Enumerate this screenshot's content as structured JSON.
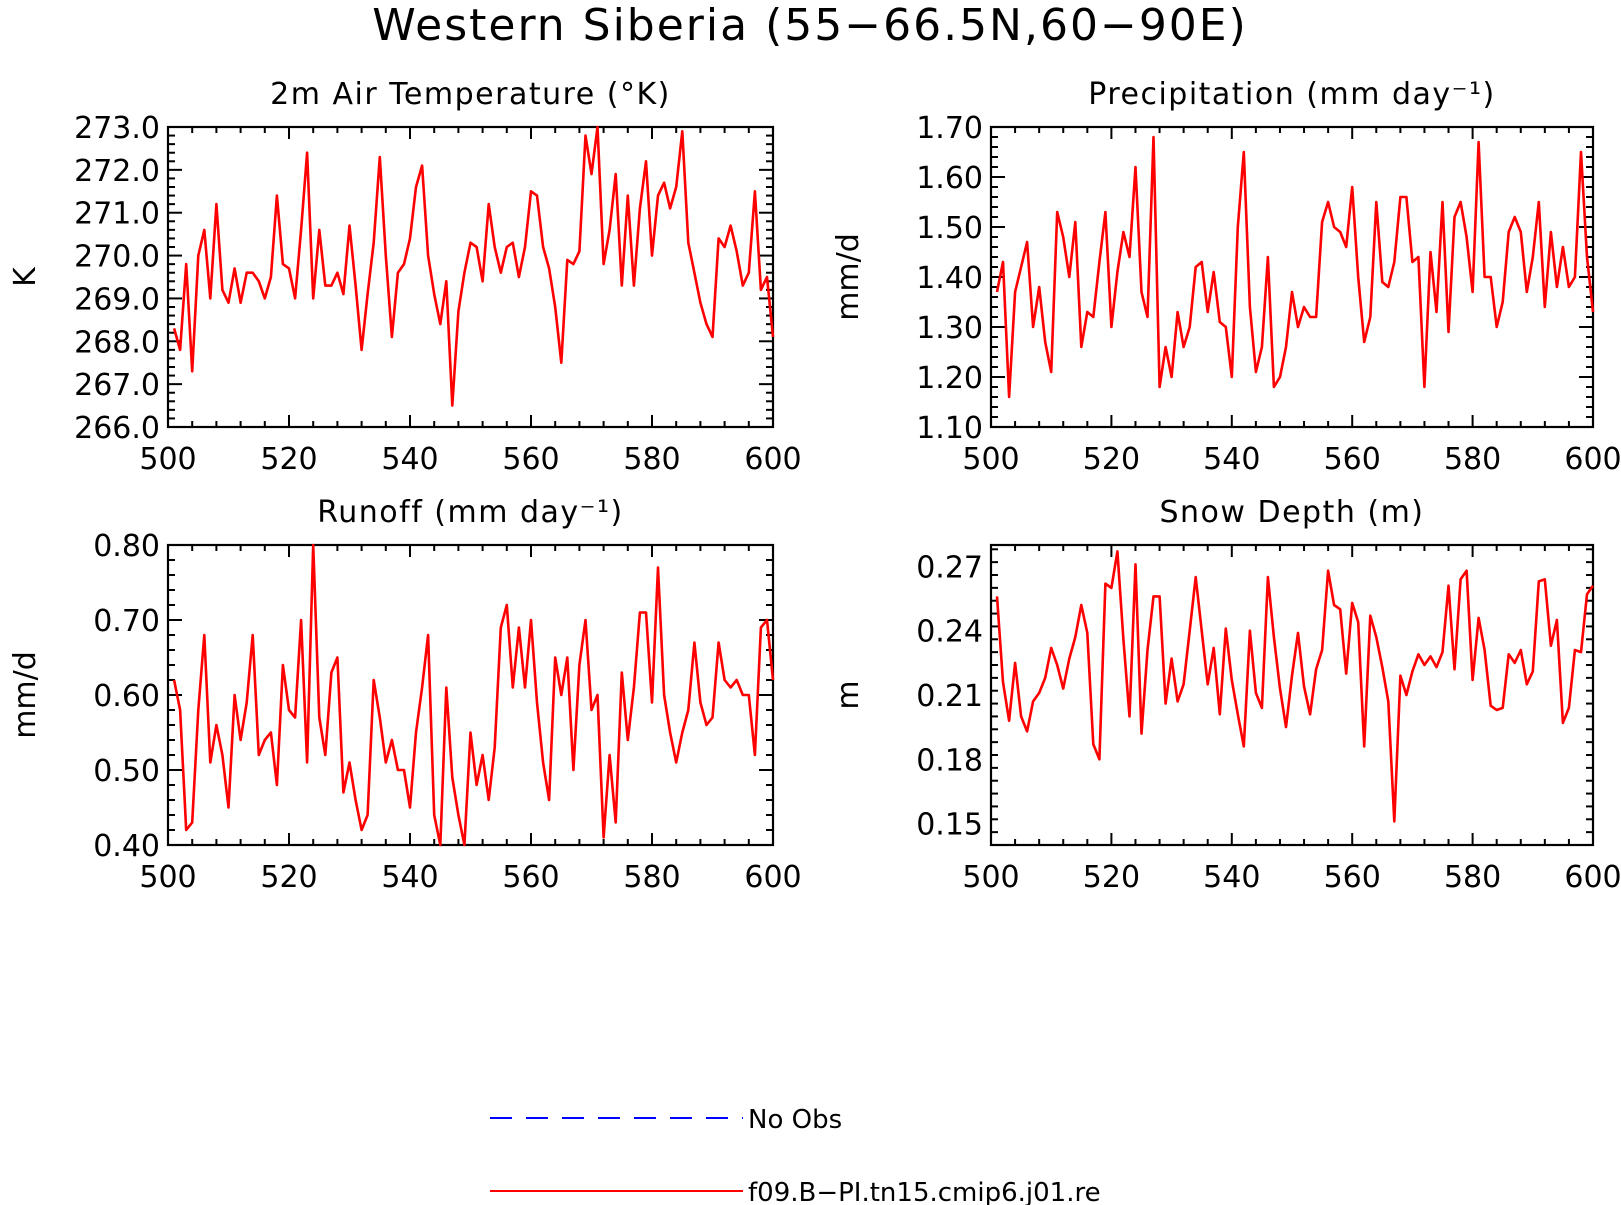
{
  "figure": {
    "title": "Western Siberia (55−66.5N,60−90E)"
  },
  "colors": {
    "model_line": "#ff0000",
    "obs_line": "#0000ff",
    "axis": "#000000",
    "background": "#ffffff"
  },
  "legend": {
    "entries": [
      {
        "label": "No Obs",
        "color": "#0000ff",
        "style": "dashed"
      },
      {
        "label": "f09.B−PI.tn15.cmip6.j01.re",
        "color": "#ff0000",
        "style": "solid"
      }
    ]
  },
  "chart_data": [
    {
      "type": "line",
      "title": "2m Air Temperature (°K)",
      "ylabel": "K",
      "xlabel": "",
      "xlim": [
        500,
        600
      ],
      "ylim": [
        266.0,
        273.0
      ],
      "xticks": [
        "500",
        "520",
        "540",
        "560",
        "580",
        "600"
      ],
      "yticks": [
        "266.0",
        "267.0",
        "268.0",
        "269.0",
        "270.0",
        "271.0",
        "272.0",
        "273.0"
      ],
      "grid": false,
      "series": [
        {
          "name": "f09.B−PI.tn15.cmip6.j01.re",
          "x_start": 501,
          "values": [
            268.3,
            267.8,
            269.8,
            267.3,
            270.0,
            270.6,
            269.0,
            271.2,
            269.2,
            268.9,
            269.7,
            268.9,
            269.6,
            269.6,
            269.4,
            269.0,
            269.5,
            271.4,
            269.8,
            269.7,
            269.0,
            270.6,
            272.4,
            269.0,
            270.6,
            269.3,
            269.3,
            269.6,
            269.1,
            270.7,
            269.3,
            267.8,
            269.1,
            270.3,
            272.3,
            270.0,
            268.1,
            269.6,
            269.8,
            270.4,
            271.6,
            272.1,
            270.0,
            269.1,
            268.4,
            269.4,
            266.5,
            268.7,
            269.6,
            270.3,
            270.2,
            269.4,
            271.2,
            270.2,
            269.6,
            270.2,
            270.3,
            269.5,
            270.2,
            271.5,
            271.4,
            270.2,
            269.7,
            268.8,
            267.5,
            269.9,
            269.8,
            270.1,
            272.8,
            271.9,
            273.0,
            269.8,
            270.6,
            271.9,
            269.3,
            271.4,
            269.3,
            271.1,
            272.2,
            270.0,
            271.4,
            271.7,
            271.1,
            271.6,
            272.9,
            270.3,
            269.6,
            268.9,
            268.4,
            268.1,
            270.4,
            270.2,
            270.7,
            270.1,
            269.3,
            269.6,
            271.5,
            269.2,
            269.5,
            268.1
          ]
        }
      ]
    },
    {
      "type": "line",
      "title": "Precipitation (mm day⁻¹)",
      "ylabel": "mm/d",
      "xlabel": "",
      "xlim": [
        500,
        600
      ],
      "ylim": [
        1.1,
        1.7
      ],
      "xticks": [
        "500",
        "520",
        "540",
        "560",
        "580",
        "600"
      ],
      "yticks": [
        "1.10",
        "1.20",
        "1.30",
        "1.40",
        "1.50",
        "1.60",
        "1.70"
      ],
      "grid": false,
      "series": [
        {
          "name": "f09.B−PI.tn15.cmip6.j01.re",
          "x_start": 501,
          "values": [
            1.37,
            1.43,
            1.16,
            1.37,
            1.42,
            1.47,
            1.3,
            1.38,
            1.27,
            1.21,
            1.53,
            1.48,
            1.4,
            1.51,
            1.26,
            1.33,
            1.32,
            1.43,
            1.53,
            1.3,
            1.41,
            1.49,
            1.44,
            1.62,
            1.37,
            1.32,
            1.68,
            1.18,
            1.26,
            1.2,
            1.33,
            1.26,
            1.3,
            1.42,
            1.43,
            1.33,
            1.41,
            1.31,
            1.3,
            1.2,
            1.5,
            1.65,
            1.34,
            1.21,
            1.26,
            1.44,
            1.18,
            1.2,
            1.26,
            1.37,
            1.3,
            1.34,
            1.32,
            1.32,
            1.51,
            1.55,
            1.5,
            1.49,
            1.46,
            1.58,
            1.4,
            1.27,
            1.32,
            1.55,
            1.39,
            1.38,
            1.43,
            1.56,
            1.56,
            1.43,
            1.44,
            1.18,
            1.45,
            1.33,
            1.55,
            1.29,
            1.52,
            1.55,
            1.48,
            1.37,
            1.67,
            1.4,
            1.4,
            1.3,
            1.35,
            1.49,
            1.52,
            1.49,
            1.37,
            1.44,
            1.55,
            1.34,
            1.49,
            1.38,
            1.46,
            1.38,
            1.4,
            1.65,
            1.44,
            1.33
          ]
        }
      ]
    },
    {
      "type": "line",
      "title": "Runoff (mm day⁻¹)",
      "ylabel": "mm/d",
      "xlabel": "",
      "xlim": [
        500,
        600
      ],
      "ylim": [
        0.4,
        0.8
      ],
      "xticks": [
        "500",
        "520",
        "540",
        "560",
        "580",
        "600"
      ],
      "yticks": [
        "0.40",
        "0.50",
        "0.60",
        "0.70",
        "0.80"
      ],
      "grid": false,
      "series": [
        {
          "name": "f09.B−PI.tn15.cmip6.j01.re",
          "x_start": 501,
          "values": [
            0.62,
            0.58,
            0.42,
            0.43,
            0.58,
            0.68,
            0.51,
            0.56,
            0.52,
            0.45,
            0.6,
            0.54,
            0.59,
            0.68,
            0.52,
            0.54,
            0.55,
            0.48,
            0.64,
            0.58,
            0.57,
            0.7,
            0.51,
            0.8,
            0.57,
            0.52,
            0.63,
            0.65,
            0.47,
            0.51,
            0.46,
            0.42,
            0.44,
            0.62,
            0.57,
            0.51,
            0.54,
            0.5,
            0.5,
            0.45,
            0.55,
            0.61,
            0.68,
            0.44,
            0.4,
            0.61,
            0.49,
            0.44,
            0.4,
            0.55,
            0.48,
            0.52,
            0.46,
            0.53,
            0.69,
            0.72,
            0.61,
            0.69,
            0.61,
            0.7,
            0.59,
            0.51,
            0.46,
            0.65,
            0.6,
            0.65,
            0.5,
            0.64,
            0.7,
            0.58,
            0.6,
            0.41,
            0.52,
            0.43,
            0.63,
            0.54,
            0.61,
            0.71,
            0.71,
            0.59,
            0.77,
            0.6,
            0.55,
            0.51,
            0.55,
            0.58,
            0.67,
            0.59,
            0.56,
            0.57,
            0.67,
            0.62,
            0.61,
            0.62,
            0.6,
            0.6,
            0.52,
            0.69,
            0.7,
            0.62
          ]
        }
      ]
    },
    {
      "type": "line",
      "title": "Snow Depth (m)",
      "ylabel": "m",
      "xlabel": "",
      "xlim": [
        500,
        600
      ],
      "ylim": [
        0.14,
        0.28
      ],
      "xticks": [
        "500",
        "520",
        "540",
        "560",
        "580",
        "600"
      ],
      "yticks": [
        "0.15",
        "0.18",
        "0.21",
        "0.24",
        "0.27"
      ],
      "grid": false,
      "series": [
        {
          "name": "f09.B−PI.tn15.cmip6.j01.re",
          "x_start": 501,
          "values": [
            0.256,
            0.216,
            0.198,
            0.225,
            0.2,
            0.193,
            0.207,
            0.211,
            0.218,
            0.232,
            0.224,
            0.213,
            0.227,
            0.237,
            0.252,
            0.239,
            0.187,
            0.18,
            0.262,
            0.26,
            0.277,
            0.236,
            0.2,
            0.271,
            0.192,
            0.231,
            0.256,
            0.256,
            0.206,
            0.227,
            0.207,
            0.215,
            0.24,
            0.265,
            0.24,
            0.215,
            0.232,
            0.201,
            0.241,
            0.217,
            0.201,
            0.186,
            0.24,
            0.211,
            0.204,
            0.265,
            0.237,
            0.213,
            0.195,
            0.219,
            0.239,
            0.214,
            0.201,
            0.222,
            0.231,
            0.268,
            0.252,
            0.25,
            0.22,
            0.253,
            0.244,
            0.186,
            0.247,
            0.237,
            0.223,
            0.207,
            0.151,
            0.219,
            0.21,
            0.221,
            0.229,
            0.224,
            0.228,
            0.223,
            0.23,
            0.261,
            0.222,
            0.264,
            0.268,
            0.217,
            0.246,
            0.231,
            0.205,
            0.203,
            0.204,
            0.229,
            0.225,
            0.231,
            0.215,
            0.221,
            0.263,
            0.264,
            0.233,
            0.245,
            0.197,
            0.204,
            0.231,
            0.23,
            0.257,
            0.261
          ]
        }
      ]
    }
  ]
}
